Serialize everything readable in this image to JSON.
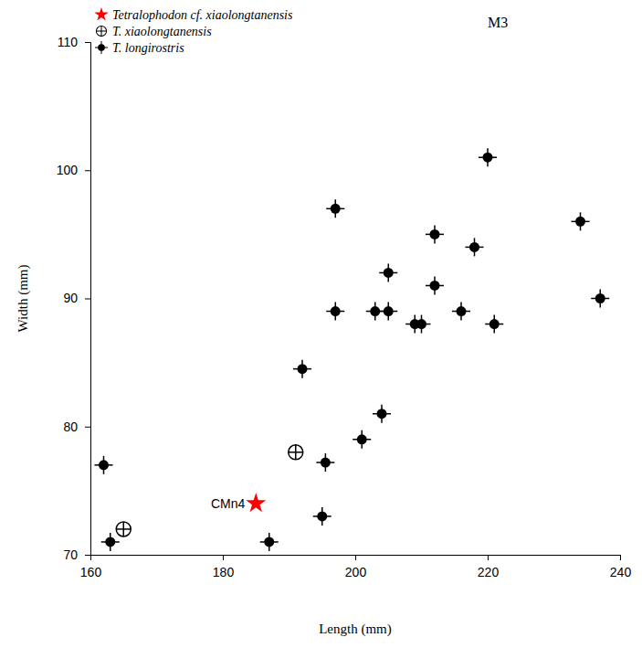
{
  "chart_data": {
    "type": "scatter",
    "title": "M3",
    "x_label": "Length (mm)",
    "y_label": "Width (mm)",
    "xlim": [
      160,
      240
    ],
    "xticks": [
      160,
      180,
      200,
      220,
      240
    ],
    "ylim": [
      70,
      110
    ],
    "yticks": [
      70,
      80,
      90,
      100,
      110
    ],
    "legend": "top-left",
    "grid": false,
    "annotations": [
      {
        "text": "CMn4",
        "x": 185,
        "y": 74
      }
    ],
    "series": [
      {
        "name": "Tetralophodon cf. xiaolongtanensis",
        "color": "#ff0000",
        "marker": "star",
        "x": [
          185
        ],
        "values": [
          74
        ]
      },
      {
        "name": "T. xiaolongtanensis",
        "color": "#000000",
        "marker": "circle-plus",
        "x": [
          165,
          191
        ],
        "values": [
          72,
          78
        ]
      },
      {
        "name": "T. longirostris",
        "color": "#000000",
        "marker": "circle-cross",
        "x": [
          162,
          163,
          187,
          192,
          195,
          195.5,
          197,
          197,
          201,
          203,
          204,
          205,
          205,
          209,
          210,
          212,
          212,
          216,
          218,
          220,
          221,
          234,
          237
        ],
        "values": [
          77,
          71,
          71,
          84.5,
          73,
          77.2,
          97,
          89,
          79,
          89,
          81,
          92,
          89,
          88,
          88,
          95,
          91,
          89,
          94,
          101,
          88,
          96,
          90
        ]
      }
    ]
  }
}
